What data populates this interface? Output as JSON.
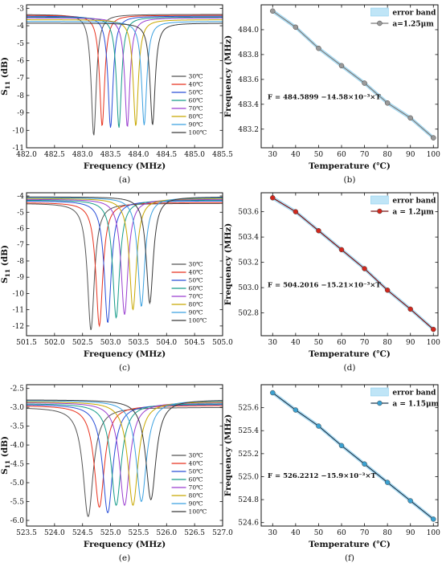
{
  "colors": [
    "#555555",
    "#e8321e",
    "#2a4fd8",
    "#169c8a",
    "#9a3fd0",
    "#c8a800",
    "#3aa0e0",
    "#3a3a3a"
  ],
  "chart_data": [
    {
      "type": "line",
      "caption": "(a)",
      "xlabel": "Frequency (MHz)",
      "ylabel": "S11 (dB)",
      "ylabel_main": "S",
      "ylabel_sub": "11",
      "ylabel_unit": " (dB)",
      "xlim": [
        482.0,
        485.5
      ],
      "ylim": [
        -11,
        -2.8
      ],
      "xticks": [
        482.0,
        482.5,
        483.0,
        483.5,
        484.0,
        484.5,
        485.0,
        485.5
      ],
      "yticks": [
        -11,
        -10,
        -9,
        -8,
        -7,
        -6,
        -5,
        -4,
        -3
      ],
      "xtick_decimals": 1,
      "ytick_decimals": 0,
      "legend_position": "bottom-right",
      "series": [
        {
          "name": "30℃",
          "resonance": 483.2,
          "min": -10.3,
          "baseline": -3.35,
          "width": 0.055
        },
        {
          "name": "40℃",
          "resonance": 483.35,
          "min": -9.75,
          "baseline": -3.4,
          "width": 0.055
        },
        {
          "name": "50℃",
          "resonance": 483.5,
          "min": -9.85,
          "baseline": -3.45,
          "width": 0.055
        },
        {
          "name": "60℃",
          "resonance": 483.65,
          "min": -9.85,
          "baseline": -3.5,
          "width": 0.055
        },
        {
          "name": "70℃",
          "resonance": 483.8,
          "min": -9.8,
          "baseline": -3.55,
          "width": 0.055
        },
        {
          "name": "80℃",
          "resonance": 483.95,
          "min": -9.75,
          "baseline": -3.65,
          "width": 0.055
        },
        {
          "name": "90℃",
          "resonance": 484.1,
          "min": -9.7,
          "baseline": -3.75,
          "width": 0.055
        },
        {
          "name": "100℃",
          "resonance": 484.25,
          "min": -9.7,
          "baseline": -3.85,
          "width": 0.055
        }
      ]
    },
    {
      "type": "line",
      "caption": "(b)",
      "xlabel": "Temperature (℃)",
      "ylabel": "Frequency (MHz)",
      "xlim": [
        25,
        102
      ],
      "ylim": [
        483.05,
        484.2
      ],
      "xticks": [
        30,
        40,
        50,
        60,
        70,
        80,
        90,
        100
      ],
      "yticks": [
        483.2,
        483.4,
        483.6,
        483.8,
        484.0
      ],
      "xtick_decimals": 0,
      "ytick_decimals": 1,
      "legend_position": "top-right",
      "legend_band": "error band",
      "legend_points": "a=1.25μm",
      "equation": "F = 484.5899 −14.58×10⁻³×T",
      "line_color": "#7a7a7a",
      "marker_color": "#9a9a9a",
      "x": [
        30,
        40,
        50,
        60,
        70,
        80,
        90,
        100
      ],
      "y": [
        484.15,
        484.02,
        483.85,
        483.71,
        483.57,
        483.41,
        483.29,
        483.13
      ]
    },
    {
      "type": "line",
      "caption": "(c)",
      "xlabel": "Frequency (MHz)",
      "ylabel": "S11 (dB)",
      "ylabel_main": "S",
      "ylabel_sub": "11",
      "ylabel_unit": " (dB)",
      "xlim": [
        501.5,
        505.0
      ],
      "ylim": [
        -12.6,
        -3.8
      ],
      "xticks": [
        501.5,
        502.0,
        502.5,
        503.0,
        503.5,
        504.0,
        504.5,
        505.0
      ],
      "yticks": [
        -12,
        -11,
        -10,
        -9,
        -8,
        -7,
        -6,
        -5,
        -4
      ],
      "xtick_decimals": 1,
      "ytick_decimals": 0,
      "legend_position": "bottom-right",
      "series": [
        {
          "name": "30℃",
          "resonance": 502.65,
          "min": -12.25,
          "baseline": -4.45,
          "width": 0.075
        },
        {
          "name": "40℃",
          "resonance": 502.8,
          "min": -12.0,
          "baseline": -4.4,
          "width": 0.075
        },
        {
          "name": "50℃",
          "resonance": 502.95,
          "min": -11.8,
          "baseline": -4.3,
          "width": 0.075
        },
        {
          "name": "60℃",
          "resonance": 503.1,
          "min": -11.5,
          "baseline": -4.25,
          "width": 0.075
        },
        {
          "name": "70℃",
          "resonance": 503.25,
          "min": -11.3,
          "baseline": -4.2,
          "width": 0.075
        },
        {
          "name": "80℃",
          "resonance": 503.4,
          "min": -11.0,
          "baseline": -4.15,
          "width": 0.075
        },
        {
          "name": "90℃",
          "resonance": 503.55,
          "min": -10.8,
          "baseline": -4.1,
          "width": 0.075
        },
        {
          "name": "100℃",
          "resonance": 503.7,
          "min": -10.6,
          "baseline": -4.05,
          "width": 0.075
        }
      ]
    },
    {
      "type": "line",
      "caption": "(d)",
      "xlabel": "Temperature (℃)",
      "ylabel": "Frequency (MHz)",
      "xlim": [
        25,
        102
      ],
      "ylim": [
        502.62,
        503.75
      ],
      "xticks": [
        30,
        40,
        50,
        60,
        70,
        80,
        90,
        100
      ],
      "yticks": [
        502.8,
        503.0,
        503.2,
        503.4,
        503.6
      ],
      "xtick_decimals": 0,
      "ytick_decimals": 1,
      "legend_position": "top-right",
      "legend_band": "error band",
      "legend_points": "a = 1.2μm",
      "equation": "F = 504.2016 −15.21×10⁻³×T",
      "line_color": "#7a1010",
      "marker_color": "#d0281e",
      "x": [
        30,
        40,
        50,
        60,
        70,
        80,
        90,
        100
      ],
      "y": [
        503.71,
        503.6,
        503.45,
        503.3,
        503.15,
        502.98,
        502.83,
        502.67
      ]
    },
    {
      "type": "line",
      "caption": "(e)",
      "xlabel": "Frequency (MHz)",
      "ylabel": "S11 (dB)",
      "ylabel_main": "S",
      "ylabel_sub": "11",
      "ylabel_unit": " (dB)",
      "xlim": [
        523.5,
        527.0
      ],
      "ylim": [
        -6.15,
        -2.4
      ],
      "xticks": [
        523.5,
        524.0,
        524.5,
        525.0,
        525.5,
        526.0,
        526.5,
        527.0
      ],
      "yticks": [
        -6.0,
        -5.5,
        -5.0,
        -4.5,
        -4.0,
        -3.5,
        -3.0,
        -2.5
      ],
      "xtick_decimals": 1,
      "ytick_decimals": 1,
      "legend_position": "bottom-right",
      "series": [
        {
          "name": "30℃",
          "resonance": 524.6,
          "min": -5.9,
          "baseline": -3.0,
          "width": 0.11
        },
        {
          "name": "40℃",
          "resonance": 524.8,
          "min": -5.65,
          "baseline": -2.95,
          "width": 0.11
        },
        {
          "name": "50℃",
          "resonance": 524.95,
          "min": -5.8,
          "baseline": -2.92,
          "width": 0.11
        },
        {
          "name": "60℃",
          "resonance": 525.1,
          "min": -5.6,
          "baseline": -2.9,
          "width": 0.11
        },
        {
          "name": "70℃",
          "resonance": 525.25,
          "min": -5.6,
          "baseline": -2.87,
          "width": 0.11
        },
        {
          "name": "80℃",
          "resonance": 525.4,
          "min": -5.6,
          "baseline": -2.85,
          "width": 0.11
        },
        {
          "name": "90℃",
          "resonance": 525.55,
          "min": -5.5,
          "baseline": -2.82,
          "width": 0.11
        },
        {
          "name": "100℃",
          "resonance": 525.72,
          "min": -5.45,
          "baseline": -2.8,
          "width": 0.11
        }
      ]
    },
    {
      "type": "line",
      "caption": "(f)",
      "xlabel": "Temperature (℃)",
      "ylabel": "Frequency (MHz)",
      "xlim": [
        25,
        102
      ],
      "ylim": [
        524.57,
        525.8
      ],
      "xticks": [
        30,
        40,
        50,
        60,
        70,
        80,
        90,
        100
      ],
      "yticks": [
        524.6,
        524.8,
        525.0,
        525.2,
        525.4,
        525.6
      ],
      "xtick_decimals": 0,
      "ytick_decimals": 1,
      "legend_position": "top-right",
      "legend_band": "error band",
      "legend_points": "a = 1.15μm",
      "equation": "F = 526.2212 −15.9×10⁻³×T",
      "line_color": "#1c3a52",
      "marker_color": "#3aa0d0",
      "x": [
        30,
        40,
        50,
        60,
        70,
        80,
        90,
        100
      ],
      "y": [
        525.73,
        525.58,
        525.44,
        525.27,
        525.11,
        524.95,
        524.79,
        524.63
      ]
    }
  ]
}
